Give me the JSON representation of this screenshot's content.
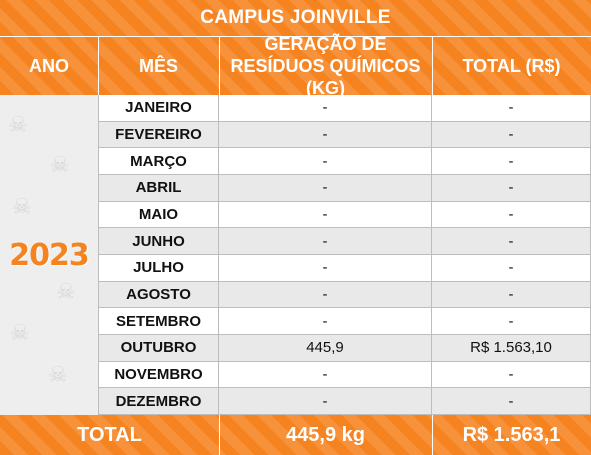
{
  "title": "CAMPUS JOINVILLE",
  "headers": {
    "ano": "ANO",
    "mes": "MÊS",
    "geracao_line1": "GERAÇÃO DE",
    "geracao_line2": "RESÍDUOS QUÍMICOS (KG)",
    "total": "TOTAL (R$)"
  },
  "year": "2023",
  "rows": [
    {
      "month": "JANEIRO",
      "geracao": "-",
      "total": "-"
    },
    {
      "month": "FEVEREIRO",
      "geracao": "-",
      "total": "-"
    },
    {
      "month": "MARÇO",
      "geracao": "-",
      "total": "-"
    },
    {
      "month": "ABRIL",
      "geracao": "-",
      "total": "-"
    },
    {
      "month": "MAIO",
      "geracao": "-",
      "total": "-"
    },
    {
      "month": "JUNHO",
      "geracao": "-",
      "total": "-"
    },
    {
      "month": "JULHO",
      "geracao": "-",
      "total": "-"
    },
    {
      "month": "AGOSTO",
      "geracao": "-",
      "total": "-"
    },
    {
      "month": "SETEMBRO",
      "geracao": "-",
      "total": "-"
    },
    {
      "month": "OUTUBRO",
      "geracao": "445,9",
      "total": "R$ 1.563,10"
    },
    {
      "month": "NOVEMBRO",
      "geracao": "-",
      "total": "-"
    },
    {
      "month": "DEZEMBRO",
      "geracao": "-",
      "total": "-"
    }
  ],
  "footer": {
    "label": "TOTAL",
    "geracao": "445,9 kg",
    "total": "R$ 1.563,1"
  },
  "colors": {
    "accent": "#f5831f",
    "row_alt": "#e9e9e9"
  },
  "icons": {
    "watermark": "skull-crossbones-icon"
  }
}
